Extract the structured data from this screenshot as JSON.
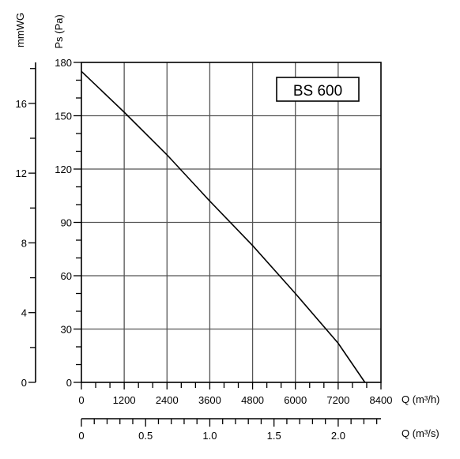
{
  "chart_data": {
    "type": "line",
    "label": "BS 600",
    "series": [
      {
        "name": "",
        "x": [
          0,
          1200,
          2400,
          3600,
          4800,
          6000,
          7200,
          7950
        ],
        "y": [
          175,
          152,
          128,
          102,
          77,
          50,
          22,
          0
        ]
      }
    ],
    "x_primary": {
      "label": "Q (m³/h)",
      "range": [
        0,
        8400
      ],
      "ticks": [
        0,
        1200,
        2400,
        3600,
        4800,
        6000,
        7200,
        8400
      ],
      "tick_labels": [
        "0",
        "1200",
        "2400",
        "3600",
        "4800",
        "6000",
        "7200",
        "8400"
      ]
    },
    "x_secondary": {
      "label": "Q (m³/s)",
      "range": [
        0,
        2.333
      ],
      "ticks": [
        0,
        0.5,
        1.0,
        1.5,
        2.0
      ],
      "tick_labels": [
        "0",
        "0.5",
        "1.0",
        "1.5",
        "2.0"
      ]
    },
    "y_primary": {
      "label": "Ps (Pa)",
      "range": [
        0,
        180
      ],
      "ticks": [
        0,
        30,
        60,
        90,
        120,
        150,
        180
      ],
      "tick_labels": [
        "0",
        "30",
        "60",
        "90",
        "120",
        "150",
        "180"
      ]
    },
    "y_secondary": {
      "label": "mmWG",
      "range": [
        0,
        18.35
      ],
      "ticks": [
        0,
        4,
        8,
        12,
        16
      ],
      "tick_labels": [
        "0",
        "4",
        "8",
        "12",
        "16"
      ]
    },
    "grid": true
  }
}
